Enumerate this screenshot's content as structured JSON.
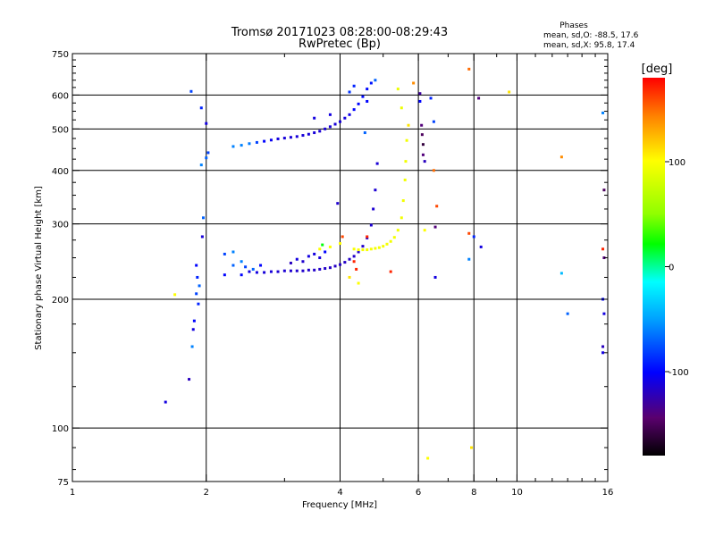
{
  "chart_data": {
    "type": "scatter",
    "title": "Tromsø 20171023 08:28:00-08:29:43",
    "subtitle": "RwPretec (Bp)",
    "xlabel": "Frequency [MHz]",
    "ylabel": "Stationary phase Virtual Height [km]",
    "x_scale": "log",
    "y_scale": "log",
    "xlim": [
      1,
      16
    ],
    "ylim": [
      75,
      750
    ],
    "x_major_ticks": [
      1,
      2,
      4,
      6,
      8,
      10,
      16
    ],
    "x_minor_ticks": [
      3,
      5,
      7,
      9,
      11,
      12,
      13,
      14,
      15
    ],
    "y_major_ticks": [
      75,
      100,
      200,
      300,
      400,
      500,
      600,
      750
    ],
    "y_minor_ticks": [
      80,
      90,
      125,
      150,
      175,
      225,
      250,
      275,
      325,
      350,
      375,
      425,
      450,
      475,
      525,
      550,
      575,
      625,
      650,
      675,
      700,
      725
    ],
    "y_gridlines": [
      100,
      200,
      300,
      400,
      500,
      600
    ],
    "x_gridlines": [
      2,
      4,
      6,
      8,
      10
    ],
    "grid": true,
    "colorbar": {
      "label": "[deg]",
      "min": -180,
      "max": 180,
      "ticks": [
        {
          "value": 100,
          "label": "100"
        },
        {
          "value": 0,
          "label": "0"
        },
        {
          "value": -100,
          "label": "-100"
        }
      ]
    },
    "stats": {
      "heading": "Phases",
      "line_o": "mean, sd,O: -88.5, 17.6",
      "line_x": "mean, sd,X:  95.8, 17.4"
    },
    "series": [
      {
        "values": [
          {
            "x": 2.5,
            "y": 232,
            "phase": -110
          },
          {
            "x": 2.6,
            "y": 231,
            "phase": -110
          },
          {
            "x": 2.7,
            "y": 231,
            "phase": -112
          },
          {
            "x": 2.8,
            "y": 232,
            "phase": -112
          },
          {
            "x": 2.9,
            "y": 232,
            "phase": -114
          },
          {
            "x": 3.0,
            "y": 233,
            "phase": -114
          },
          {
            "x": 3.1,
            "y": 233,
            "phase": -115
          },
          {
            "x": 3.2,
            "y": 233,
            "phase": -115
          },
          {
            "x": 3.3,
            "y": 233,
            "phase": -116
          },
          {
            "x": 3.4,
            "y": 234,
            "phase": -116
          },
          {
            "x": 3.5,
            "y": 234,
            "phase": -117
          },
          {
            "x": 3.6,
            "y": 235,
            "phase": -117
          },
          {
            "x": 3.7,
            "y": 236,
            "phase": -117
          },
          {
            "x": 3.8,
            "y": 237,
            "phase": -118
          },
          {
            "x": 3.9,
            "y": 239,
            "phase": -118
          },
          {
            "x": 4.0,
            "y": 241,
            "phase": -118
          },
          {
            "x": 4.1,
            "y": 244,
            "phase": -118
          },
          {
            "x": 4.2,
            "y": 248,
            "phase": -117
          },
          {
            "x": 4.3,
            "y": 252,
            "phase": -117
          },
          {
            "x": 4.4,
            "y": 258,
            "phase": -116
          },
          {
            "x": 4.5,
            "y": 266,
            "phase": -116
          },
          {
            "x": 4.6,
            "y": 278,
            "phase": -115
          },
          {
            "x": 4.7,
            "y": 298,
            "phase": -114
          },
          {
            "x": 4.75,
            "y": 325,
            "phase": -114
          },
          {
            "x": 4.8,
            "y": 360,
            "phase": -114
          },
          {
            "x": 4.85,
            "y": 415,
            "phase": -113
          }
        ]
      },
      {
        "values": [
          {
            "x": 4.3,
            "y": 262,
            "phase": 98
          },
          {
            "x": 4.4,
            "y": 261,
            "phase": 98
          },
          {
            "x": 4.5,
            "y": 261,
            "phase": 97
          },
          {
            "x": 4.6,
            "y": 261,
            "phase": 97
          },
          {
            "x": 4.7,
            "y": 262,
            "phase": 97
          },
          {
            "x": 4.8,
            "y": 263,
            "phase": 96
          },
          {
            "x": 4.9,
            "y": 264,
            "phase": 96
          },
          {
            "x": 5.0,
            "y": 266,
            "phase": 96
          },
          {
            "x": 5.1,
            "y": 269,
            "phase": 96
          },
          {
            "x": 5.2,
            "y": 273,
            "phase": 95
          },
          {
            "x": 5.3,
            "y": 279,
            "phase": 95
          },
          {
            "x": 5.4,
            "y": 290,
            "phase": 95
          },
          {
            "x": 5.5,
            "y": 310,
            "phase": 95
          },
          {
            "x": 5.55,
            "y": 340,
            "phase": 95
          },
          {
            "x": 5.6,
            "y": 380,
            "phase": 95
          },
          {
            "x": 5.62,
            "y": 420,
            "phase": 95
          },
          {
            "x": 5.65,
            "y": 470,
            "phase": 95
          },
          {
            "x": 5.4,
            "y": 620,
            "phase": 92
          },
          {
            "x": 5.5,
            "y": 560,
            "phase": 92
          },
          {
            "x": 3.6,
            "y": 262,
            "phase": 100
          },
          {
            "x": 3.8,
            "y": 265,
            "phase": 100
          },
          {
            "x": 4.0,
            "y": 270,
            "phase": 101
          }
        ]
      },
      {
        "values": [
          {
            "x": 2.3,
            "y": 455,
            "phase": -60
          },
          {
            "x": 2.4,
            "y": 458,
            "phase": -60
          },
          {
            "x": 2.5,
            "y": 462,
            "phase": -62
          },
          {
            "x": 2.6,
            "y": 465,
            "phase": -80
          },
          {
            "x": 2.7,
            "y": 468,
            "phase": -100
          },
          {
            "x": 2.8,
            "y": 471,
            "phase": -105
          },
          {
            "x": 2.9,
            "y": 474,
            "phase": -110
          },
          {
            "x": 3.0,
            "y": 476,
            "phase": -112
          },
          {
            "x": 3.1,
            "y": 478,
            "phase": -112
          },
          {
            "x": 3.2,
            "y": 480,
            "phase": -112
          },
          {
            "x": 3.3,
            "y": 483,
            "phase": -112
          },
          {
            "x": 3.4,
            "y": 486,
            "phase": -112
          },
          {
            "x": 3.5,
            "y": 490,
            "phase": -112
          },
          {
            "x": 3.6,
            "y": 494,
            "phase": -113
          },
          {
            "x": 3.7,
            "y": 500,
            "phase": -113
          },
          {
            "x": 3.8,
            "y": 506,
            "phase": -113
          },
          {
            "x": 3.9,
            "y": 513,
            "phase": -113
          },
          {
            "x": 4.0,
            "y": 520,
            "phase": -112
          },
          {
            "x": 4.1,
            "y": 530,
            "phase": -110
          },
          {
            "x": 4.2,
            "y": 540,
            "phase": -108
          },
          {
            "x": 4.3,
            "y": 555,
            "phase": -100
          },
          {
            "x": 4.4,
            "y": 572,
            "phase": -100
          },
          {
            "x": 4.5,
            "y": 595,
            "phase": -98
          },
          {
            "x": 4.6,
            "y": 620,
            "phase": -98
          },
          {
            "x": 4.7,
            "y": 640,
            "phase": -95
          },
          {
            "x": 3.8,
            "y": 540,
            "phase": -110
          },
          {
            "x": 4.2,
            "y": 610,
            "phase": -85
          },
          {
            "x": 4.3,
            "y": 630,
            "phase": -90
          },
          {
            "x": 4.6,
            "y": 580,
            "phase": -100
          },
          {
            "x": 4.8,
            "y": 650,
            "phase": -70
          },
          {
            "x": 4.55,
            "y": 490,
            "phase": -70
          },
          {
            "x": 3.5,
            "y": 530,
            "phase": -110
          }
        ]
      },
      {
        "values": [
          {
            "x": 1.85,
            "y": 612,
            "phase": -80
          },
          {
            "x": 1.95,
            "y": 560,
            "phase": -90
          },
          {
            "x": 2.0,
            "y": 515,
            "phase": -110
          },
          {
            "x": 1.95,
            "y": 412,
            "phase": -60
          },
          {
            "x": 2.0,
            "y": 428,
            "phase": -70
          },
          {
            "x": 2.02,
            "y": 440,
            "phase": -80
          },
          {
            "x": 1.97,
            "y": 310,
            "phase": -70
          },
          {
            "x": 1.96,
            "y": 280,
            "phase": -112
          },
          {
            "x": 1.9,
            "y": 240,
            "phase": -100
          },
          {
            "x": 1.91,
            "y": 225,
            "phase": -90
          },
          {
            "x": 1.93,
            "y": 215,
            "phase": -70
          },
          {
            "x": 1.9,
            "y": 206,
            "phase": -80
          },
          {
            "x": 1.92,
            "y": 195,
            "phase": -90
          },
          {
            "x": 1.88,
            "y": 178,
            "phase": -100
          },
          {
            "x": 1.87,
            "y": 170,
            "phase": -110
          },
          {
            "x": 1.86,
            "y": 155,
            "phase": -60
          },
          {
            "x": 1.83,
            "y": 130,
            "phase": -120
          },
          {
            "x": 1.62,
            "y": 115,
            "phase": -110
          },
          {
            "x": 1.7,
            "y": 205,
            "phase": 100
          }
        ]
      },
      {
        "values": [
          {
            "x": 2.2,
            "y": 228,
            "phase": -100
          },
          {
            "x": 2.3,
            "y": 240,
            "phase": -70
          },
          {
            "x": 2.4,
            "y": 245,
            "phase": -60
          },
          {
            "x": 2.4,
            "y": 228,
            "phase": -100
          },
          {
            "x": 2.45,
            "y": 238,
            "phase": -80
          },
          {
            "x": 2.55,
            "y": 235,
            "phase": -70
          },
          {
            "x": 2.65,
            "y": 240,
            "phase": -100
          },
          {
            "x": 2.3,
            "y": 258,
            "phase": -60
          },
          {
            "x": 2.2,
            "y": 255,
            "phase": -80
          },
          {
            "x": 3.1,
            "y": 243,
            "phase": -120
          },
          {
            "x": 3.2,
            "y": 248,
            "phase": -110
          },
          {
            "x": 3.3,
            "y": 245,
            "phase": -115
          },
          {
            "x": 3.4,
            "y": 252,
            "phase": -110
          },
          {
            "x": 3.5,
            "y": 255,
            "phase": -110
          },
          {
            "x": 3.6,
            "y": 250,
            "phase": -112
          },
          {
            "x": 3.7,
            "y": 258,
            "phase": -100
          }
        ]
      },
      {
        "values": [
          {
            "x": 3.95,
            "y": 335,
            "phase": -115
          },
          {
            "x": 4.05,
            "y": 280,
            "phase": 160
          },
          {
            "x": 4.3,
            "y": 245,
            "phase": 170
          },
          {
            "x": 4.35,
            "y": 235,
            "phase": 170
          },
          {
            "x": 4.4,
            "y": 218,
            "phase": 100
          },
          {
            "x": 4.6,
            "y": 280,
            "phase": 170
          },
          {
            "x": 5.2,
            "y": 232,
            "phase": 170
          },
          {
            "x": 3.65,
            "y": 268,
            "phase": 20
          },
          {
            "x": 4.2,
            "y": 225,
            "phase": 110
          }
        ]
      },
      {
        "values": [
          {
            "x": 5.85,
            "y": 640,
            "phase": 140
          },
          {
            "x": 6.05,
            "y": 605,
            "phase": -130
          },
          {
            "x": 6.05,
            "y": 580,
            "phase": -100
          },
          {
            "x": 6.1,
            "y": 510,
            "phase": -140
          },
          {
            "x": 6.12,
            "y": 485,
            "phase": -150
          },
          {
            "x": 6.15,
            "y": 460,
            "phase": -160
          },
          {
            "x": 6.15,
            "y": 435,
            "phase": -140
          },
          {
            "x": 6.2,
            "y": 420,
            "phase": -120
          },
          {
            "x": 6.2,
            "y": 290,
            "phase": 100
          },
          {
            "x": 6.4,
            "y": 590,
            "phase": -90
          },
          {
            "x": 6.5,
            "y": 520,
            "phase": -80
          },
          {
            "x": 6.5,
            "y": 400,
            "phase": 150
          },
          {
            "x": 6.6,
            "y": 330,
            "phase": 160
          },
          {
            "x": 6.55,
            "y": 295,
            "phase": -140
          },
          {
            "x": 6.55,
            "y": 225,
            "phase": -110
          },
          {
            "x": 6.3,
            "y": 85,
            "phase": 100
          },
          {
            "x": 5.7,
            "y": 510,
            "phase": 110
          }
        ]
      },
      {
        "values": [
          {
            "x": 7.8,
            "y": 690,
            "phase": 150
          },
          {
            "x": 8.2,
            "y": 590,
            "phase": -140
          },
          {
            "x": 7.8,
            "y": 285,
            "phase": 160
          },
          {
            "x": 8.0,
            "y": 280,
            "phase": -90
          },
          {
            "x": 8.3,
            "y": 265,
            "phase": -110
          },
          {
            "x": 7.8,
            "y": 248,
            "phase": -60
          },
          {
            "x": 7.9,
            "y": 90,
            "phase": 110
          },
          {
            "x": 9.6,
            "y": 610,
            "phase": 110
          },
          {
            "x": 12.6,
            "y": 430,
            "phase": 140
          },
          {
            "x": 12.6,
            "y": 230,
            "phase": -40
          },
          {
            "x": 13.0,
            "y": 185,
            "phase": -70
          }
        ]
      },
      {
        "values": [
          {
            "x": 15.6,
            "y": 545,
            "phase": -60
          },
          {
            "x": 15.7,
            "y": 360,
            "phase": -150
          },
          {
            "x": 15.6,
            "y": 262,
            "phase": 170
          },
          {
            "x": 15.7,
            "y": 250,
            "phase": -140
          },
          {
            "x": 15.6,
            "y": 200,
            "phase": -100
          },
          {
            "x": 15.7,
            "y": 185,
            "phase": -110
          },
          {
            "x": 15.6,
            "y": 155,
            "phase": -120
          },
          {
            "x": 15.6,
            "y": 150,
            "phase": -110
          }
        ]
      }
    ]
  }
}
